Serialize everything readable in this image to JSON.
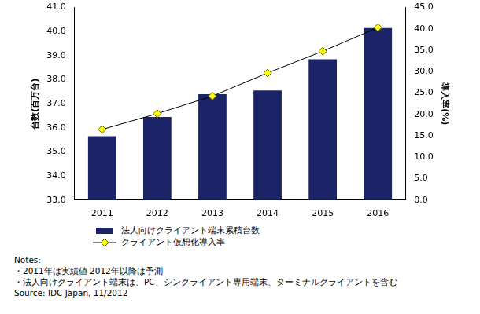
{
  "chart_data": {
    "type": "bar",
    "categories": [
      "2011",
      "2012",
      "2013",
      "2014",
      "2015",
      "2016"
    ],
    "series": [
      {
        "name": "法人向けクライアント端末累積台数",
        "type": "bar",
        "color": "#1b2466",
        "values": [
          35.65,
          36.45,
          37.4,
          37.55,
          38.85,
          40.15
        ]
      },
      {
        "name": "クライアント仮想化導入率",
        "type": "line",
        "color": "#000000",
        "marker": "diamond",
        "axis": "y2",
        "values": [
          16.5,
          20.2,
          24.3,
          29.7,
          34.8,
          40.3
        ]
      }
    ],
    "y_label": "台数(百万台)",
    "y2_label": "導入率(%)",
    "ylim": [
      33,
      41
    ],
    "yticks": [
      {
        "value": 33,
        "label": "33.0"
      },
      {
        "value": 34,
        "label": "34.0"
      },
      {
        "value": 35,
        "label": "35.0"
      },
      {
        "value": 36,
        "label": "36.0"
      },
      {
        "value": 37,
        "label": "37.0"
      },
      {
        "value": 38,
        "label": "38.0"
      },
      {
        "value": 39,
        "label": "39.0"
      },
      {
        "value": 40,
        "label": "40.0"
      },
      {
        "value": 41,
        "label": "41.0"
      }
    ],
    "y2lim": [
      0,
      45
    ],
    "y2ticks": [
      {
        "value": 0,
        "label": "0.0"
      },
      {
        "value": 5,
        "label": "5.0"
      },
      {
        "value": 10,
        "label": "10.0"
      },
      {
        "value": 15,
        "label": "15.0"
      },
      {
        "value": 20,
        "label": "20.0"
      },
      {
        "value": 25,
        "label": "25.0"
      },
      {
        "value": 30,
        "label": "30.0"
      },
      {
        "value": 35,
        "label": "35.0"
      },
      {
        "value": 40,
        "label": "40.0"
      },
      {
        "value": 45,
        "label": "45.0"
      }
    ],
    "grid": false,
    "annotations": [
      "Notes:",
      "・2011年は実績値 2012年以降は予測",
      "・法人向けクライアント端末は、PC、シンクライアント専用端末、ターミナルクライアントを含む",
      "Source: IDC Japan, 11/2012"
    ]
  }
}
